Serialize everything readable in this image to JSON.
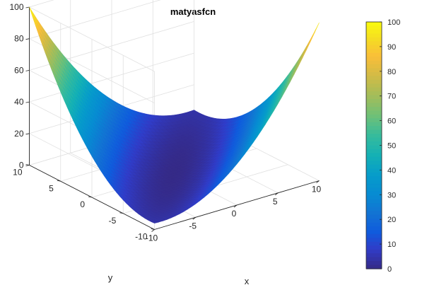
{
  "chart_data": {
    "type": "surface",
    "title": "matyasfcn",
    "function": "0.26*(x^2 + y^2) - 0.48*x*y",
    "xlabel": "x",
    "ylabel": "y",
    "zlabel": "",
    "xlim": [
      -10,
      10
    ],
    "ylim": [
      -10,
      10
    ],
    "zlim": [
      0,
      100
    ],
    "x_ticks": [
      "-10",
      "-5",
      "0",
      "5",
      "10"
    ],
    "y_ticks": [
      "-10",
      "-5",
      "0",
      "5",
      "10"
    ],
    "z_ticks": [
      "0",
      "20",
      "40",
      "60",
      "80",
      "100"
    ],
    "grid": true,
    "colormap": "parula",
    "colorbar": {
      "position": "right",
      "range": [
        0,
        100
      ],
      "ticks": [
        "0",
        "10",
        "20",
        "30",
        "40",
        "50",
        "60",
        "70",
        "80",
        "90",
        "100"
      ]
    },
    "corner_values": [
      {
        "x": -10,
        "y": -10,
        "z": 4
      },
      {
        "x": 10,
        "y": -10,
        "z": 100
      },
      {
        "x": 10,
        "y": 10,
        "z": 4
      },
      {
        "x": -10,
        "y": 10,
        "z": 100
      }
    ]
  }
}
